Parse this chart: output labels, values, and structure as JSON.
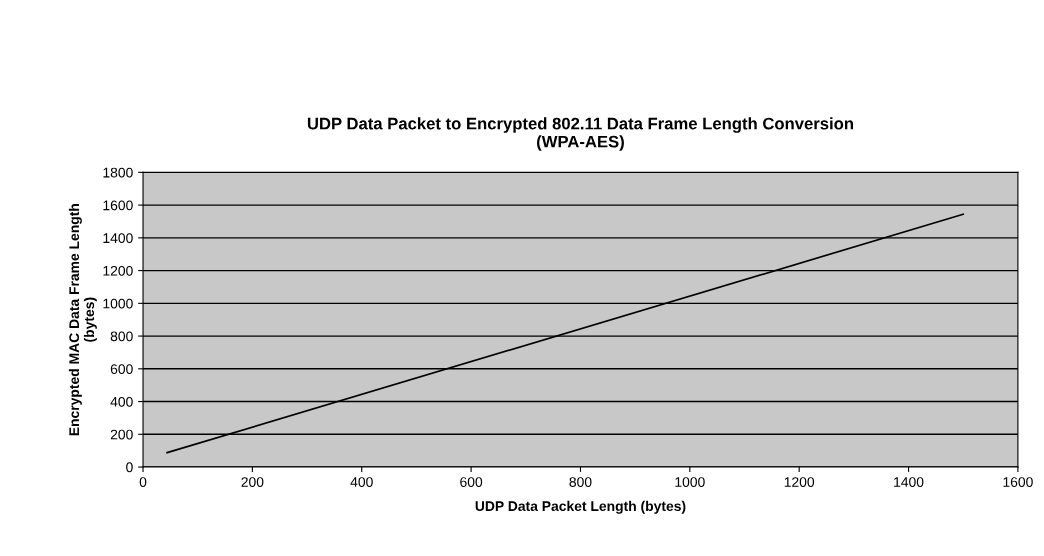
{
  "chart_data": {
    "type": "line",
    "title": "UDP Data Packet to Encrypted 802.11 Data Frame Length Conversion\n(WPA-AES)",
    "xlabel": "UDP Data Packet Length (bytes)",
    "ylabel": "Encrypted MAC Data Frame Length\n(bytes)",
    "x": [
      44,
      1500
    ],
    "series": [
      {
        "color": "#000000",
        "values": [
          88,
          1544
        ]
      }
    ],
    "xlim": [
      0,
      1600
    ],
    "xticks": [
      0,
      200,
      400,
      600,
      800,
      1000,
      1200,
      1400,
      1600
    ],
    "ylim": [
      0,
      1800
    ],
    "yticks": [
      0,
      200,
      400,
      600,
      800,
      1000,
      1200,
      1400,
      1600,
      1800
    ],
    "grid": "y"
  }
}
